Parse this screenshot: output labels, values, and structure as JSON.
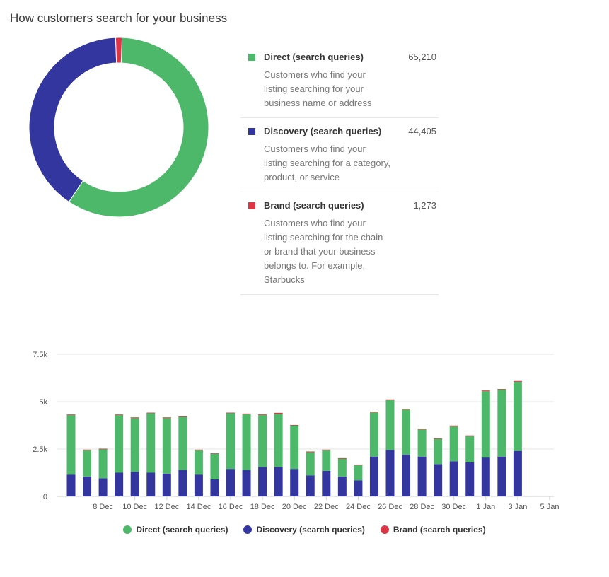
{
  "title": "How customers search for your business",
  "colors": {
    "direct": "#4db86a",
    "discovery": "#3436a0",
    "brand": "#dc3545"
  },
  "legend": [
    {
      "key": "direct",
      "name": "Direct (search queries)",
      "value": "65,210",
      "desc": "Customers who find your listing searching for your business name or address"
    },
    {
      "key": "discovery",
      "name": "Discovery (search queries)",
      "value": "44,405",
      "desc": "Customers who find your listing searching for a category, product, or service"
    },
    {
      "key": "brand",
      "name": "Brand (search queries)",
      "value": "1,273",
      "desc": "Customers who find your listing searching for the chain or brand that your business belongs to. For example, Starbucks"
    }
  ],
  "bottom_legend": [
    "Direct (search queries)",
    "Discovery (search queries)",
    "Brand (search queries)"
  ],
  "chart_data": [
    {
      "type": "pie",
      "title": "How customers search for your business",
      "labels": [
        "Direct (search queries)",
        "Discovery (search queries)",
        "Brand (search queries)"
      ],
      "values": [
        65210,
        44405,
        1273
      ]
    },
    {
      "type": "bar",
      "stacked": true,
      "categories": [
        "6 Dec",
        "7 Dec",
        "8 Dec",
        "9 Dec",
        "10 Dec",
        "11 Dec",
        "12 Dec",
        "13 Dec",
        "14 Dec",
        "15 Dec",
        "16 Dec",
        "17 Dec",
        "18 Dec",
        "19 Dec",
        "20 Dec",
        "21 Dec",
        "22 Dec",
        "23 Dec",
        "24 Dec",
        "25 Dec",
        "26 Dec",
        "27 Dec",
        "28 Dec",
        "29 Dec",
        "30 Dec",
        "31 Dec",
        "1 Jan",
        "2 Jan",
        "3 Jan",
        "4 Jan"
      ],
      "tick_labels": [
        "8 Dec",
        "10 Dec",
        "12 Dec",
        "14 Dec",
        "16 Dec",
        "18 Dec",
        "20 Dec",
        "22 Dec",
        "24 Dec",
        "26 Dec",
        "28 Dec",
        "30 Dec",
        "1 Jan",
        "3 Jan",
        "5 Jan"
      ],
      "series": [
        {
          "name": "Discovery (search queries)",
          "key": "discovery",
          "values": [
            1150,
            1050,
            950,
            1250,
            1300,
            1250,
            1200,
            1400,
            1150,
            900,
            1450,
            1400,
            1550,
            1550,
            1450,
            1100,
            1350,
            1050,
            850,
            2100,
            2450,
            2200,
            2100,
            1700,
            1850,
            1800,
            2050,
            2100,
            2400,
            0
          ]
        },
        {
          "name": "Direct (search queries)",
          "key": "direct",
          "values": [
            3150,
            1400,
            1550,
            3050,
            2850,
            3150,
            2950,
            2800,
            1300,
            1350,
            2950,
            2950,
            2750,
            2800,
            2300,
            1250,
            1100,
            950,
            800,
            2350,
            2650,
            2400,
            1450,
            1350,
            1850,
            1400,
            3500,
            3550,
            3650,
            0
          ]
        },
        {
          "name": "Brand (search queries)",
          "key": "brand",
          "values": [
            20,
            20,
            20,
            20,
            20,
            20,
            20,
            20,
            20,
            20,
            20,
            20,
            40,
            60,
            20,
            20,
            20,
            20,
            20,
            20,
            20,
            20,
            20,
            20,
            40,
            20,
            40,
            20,
            40,
            0
          ]
        }
      ],
      "yticks": [
        "0",
        "2.5k",
        "5k",
        "7.5k"
      ],
      "ylim": [
        0,
        7500
      ]
    }
  ]
}
